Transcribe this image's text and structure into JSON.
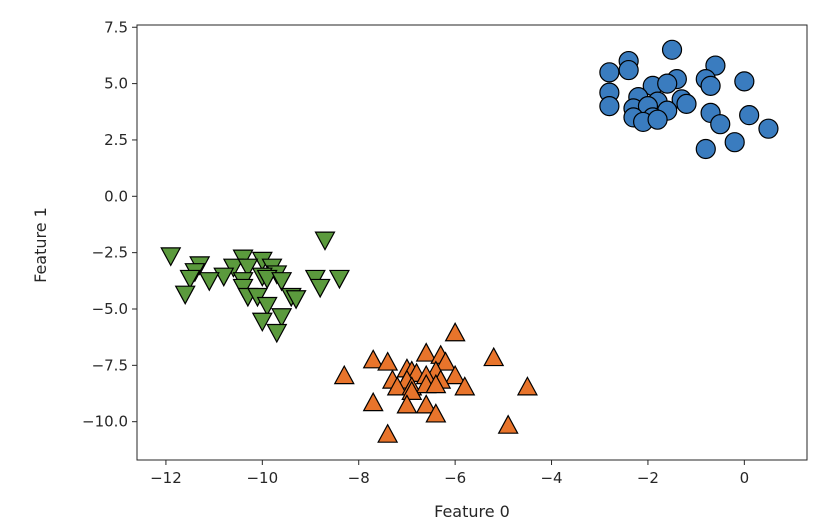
{
  "chart_data": {
    "type": "scatter",
    "title": "",
    "xlabel": "Feature 0",
    "ylabel": "Feature 1",
    "xlim": [
      -12.6,
      1.3
    ],
    "ylim": [
      -11.7,
      7.6
    ],
    "grid": false,
    "xticks": [
      {
        "value": -12,
        "label": "−12"
      },
      {
        "value": -10,
        "label": "−10"
      },
      {
        "value": -8,
        "label": "−8"
      },
      {
        "value": -6,
        "label": "−6"
      },
      {
        "value": -4,
        "label": "−4"
      },
      {
        "value": -2,
        "label": "−2"
      },
      {
        "value": 0,
        "label": "0"
      }
    ],
    "yticks": [
      {
        "value": 7.5,
        "label": "7.5"
      },
      {
        "value": 5.0,
        "label": "5.0"
      },
      {
        "value": 2.5,
        "label": "2.5"
      },
      {
        "value": 0.0,
        "label": "0.0"
      },
      {
        "value": -2.5,
        "label": "−2.5"
      },
      {
        "value": -5.0,
        "label": "−5.0"
      },
      {
        "value": -7.5,
        "label": "−7.5"
      },
      {
        "value": -10.0,
        "label": "−10.0"
      }
    ],
    "series": [
      {
        "marker": "circle",
        "color": "#3a7cbf",
        "points": [
          [
            -2.4,
            6.0
          ],
          [
            -1.5,
            6.5
          ],
          [
            -0.6,
            5.8
          ],
          [
            -2.8,
            5.5
          ],
          [
            -2.4,
            5.6
          ],
          [
            -1.4,
            5.2
          ],
          [
            -0.8,
            5.2
          ],
          [
            0.0,
            5.1
          ],
          [
            -1.9,
            4.9
          ],
          [
            -1.6,
            5.0
          ],
          [
            -0.7,
            4.9
          ],
          [
            -2.8,
            4.6
          ],
          [
            -2.2,
            4.4
          ],
          [
            -1.8,
            4.2
          ],
          [
            -1.3,
            4.3
          ],
          [
            -1.2,
            4.1
          ],
          [
            -2.8,
            4.0
          ],
          [
            -2.3,
            3.9
          ],
          [
            -2.0,
            4.0
          ],
          [
            -1.6,
            3.8
          ],
          [
            -0.7,
            3.7
          ],
          [
            -2.3,
            3.5
          ],
          [
            -1.9,
            3.5
          ],
          [
            -2.1,
            3.3
          ],
          [
            -1.8,
            3.4
          ],
          [
            -0.5,
            3.2
          ],
          [
            0.1,
            3.6
          ],
          [
            0.5,
            3.0
          ],
          [
            -0.2,
            2.4
          ],
          [
            -0.8,
            2.1
          ]
        ]
      },
      {
        "marker": "triangle-up",
        "color": "#e8742b",
        "points": [
          [
            -6.0,
            -6.1
          ],
          [
            -5.2,
            -7.2
          ],
          [
            -6.6,
            -7.0
          ],
          [
            -6.3,
            -7.1
          ],
          [
            -7.7,
            -7.3
          ],
          [
            -7.4,
            -7.4
          ],
          [
            -6.2,
            -7.4
          ],
          [
            -7.0,
            -7.7
          ],
          [
            -6.9,
            -7.8
          ],
          [
            -6.4,
            -7.8
          ],
          [
            -6.8,
            -7.9
          ],
          [
            -8.3,
            -8.0
          ],
          [
            -6.6,
            -8.0
          ],
          [
            -6.0,
            -8.0
          ],
          [
            -7.3,
            -8.2
          ],
          [
            -7.0,
            -8.2
          ],
          [
            -6.3,
            -8.2
          ],
          [
            -7.2,
            -8.5
          ],
          [
            -6.9,
            -8.5
          ],
          [
            -6.6,
            -8.4
          ],
          [
            -6.4,
            -8.4
          ],
          [
            -5.8,
            -8.5
          ],
          [
            -4.5,
            -8.5
          ],
          [
            -6.9,
            -8.7
          ],
          [
            -7.7,
            -9.2
          ],
          [
            -7.0,
            -9.3
          ],
          [
            -6.6,
            -9.3
          ],
          [
            -6.4,
            -9.7
          ],
          [
            -4.9,
            -10.2
          ],
          [
            -7.4,
            -10.6
          ]
        ]
      },
      {
        "marker": "triangle-down",
        "color": "#5b9a3d",
        "points": [
          [
            -8.7,
            -1.9
          ],
          [
            -11.9,
            -2.6
          ],
          [
            -10.4,
            -2.7
          ],
          [
            -10.0,
            -2.8
          ],
          [
            -11.3,
            -3.0
          ],
          [
            -10.6,
            -3.1
          ],
          [
            -10.3,
            -3.1
          ],
          [
            -9.8,
            -3.1
          ],
          [
            -11.4,
            -3.3
          ],
          [
            -9.7,
            -3.4
          ],
          [
            -10.8,
            -3.5
          ],
          [
            -10.0,
            -3.5
          ],
          [
            -11.5,
            -3.6
          ],
          [
            -9.9,
            -3.6
          ],
          [
            -11.1,
            -3.7
          ],
          [
            -10.4,
            -3.7
          ],
          [
            -9.6,
            -3.7
          ],
          [
            -8.9,
            -3.6
          ],
          [
            -8.4,
            -3.6
          ],
          [
            -10.4,
            -4.0
          ],
          [
            -8.8,
            -4.0
          ],
          [
            -11.6,
            -4.3
          ],
          [
            -10.3,
            -4.4
          ],
          [
            -10.1,
            -4.4
          ],
          [
            -9.4,
            -4.4
          ],
          [
            -9.3,
            -4.5
          ],
          [
            -9.9,
            -4.8
          ],
          [
            -9.6,
            -5.3
          ],
          [
            -10.0,
            -5.5
          ],
          [
            -9.7,
            -6.0
          ]
        ]
      }
    ]
  }
}
